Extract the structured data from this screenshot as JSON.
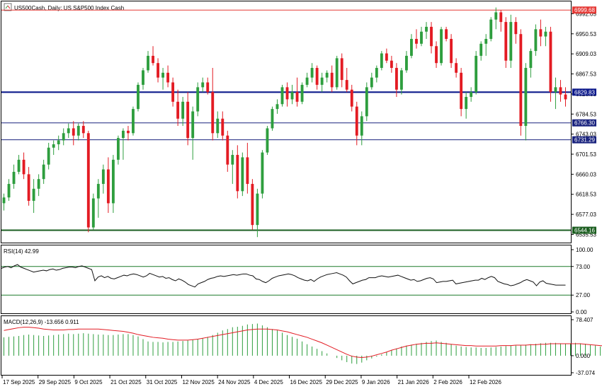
{
  "header": {
    "title": "US500Cash, Daily:  US S&P500 Index Cash"
  },
  "chart_data": [
    {
      "type": "candlestick",
      "symbol": "US500Cash",
      "timeframe": "Daily",
      "description": "US S&P500 Index Cash",
      "y_ticks": [
        "6992.05",
        "6950.53",
        "6909.03",
        "6867.53",
        "6826.03",
        "6784.53",
        "6743.03",
        "6701.53",
        "6660.03",
        "6618.53",
        "6577.03",
        "6535.53"
      ],
      "ylim": [
        6523,
        7000
      ],
      "x_ticks": [
        "17 Sep 2025",
        "29 Sep 2025",
        "9 Oct 2025",
        "21 Oct 2025",
        "31 Oct 2025",
        "12 Nov 2025",
        "24 Nov 2025",
        "4 Dec 2025",
        "16 Dec 2025",
        "29 Dec 2025",
        "9 Jan 2026",
        "21 Jan 2026",
        "2 Feb 2026",
        "12 Feb 2026"
      ],
      "levels": [
        {
          "value": 6999.68,
          "label": "6999.68",
          "color": "#e53935"
        },
        {
          "value": 6829.83,
          "label": "6829.83",
          "color": "#0d1a8c"
        },
        {
          "value": 6766.3,
          "label": "6766.30",
          "color": "#1a237e"
        },
        {
          "value": 6731.29,
          "label": "6731.29",
          "color": "#1a237e"
        },
        {
          "value": 6544.16,
          "label": "6544.16",
          "color": "#1b5e20"
        }
      ],
      "up_color": "#2e9e3e",
      "down_color": "#e31b23",
      "ohlc": [
        [
          6600,
          6620,
          6585,
          6612
        ],
        [
          6612,
          6650,
          6605,
          6640
        ],
        [
          6640,
          6680,
          6630,
          6665
        ],
        [
          6665,
          6700,
          6660,
          6690
        ],
        [
          6690,
          6705,
          6650,
          6660
        ],
        [
          6660,
          6675,
          6595,
          6605
        ],
        [
          6605,
          6650,
          6580,
          6630
        ],
        [
          6630,
          6660,
          6615,
          6650
        ],
        [
          6650,
          6690,
          6640,
          6680
        ],
        [
          6680,
          6725,
          6670,
          6715
        ],
        [
          6715,
          6730,
          6700,
          6722
        ],
        [
          6722,
          6740,
          6710,
          6730
        ],
        [
          6730,
          6755,
          6720,
          6745
        ],
        [
          6745,
          6765,
          6735,
          6755
        ],
        [
          6755,
          6770,
          6720,
          6740
        ],
        [
          6740,
          6765,
          6730,
          6760
        ],
        [
          6760,
          6770,
          6735,
          6745
        ],
        [
          6745,
          6750,
          6540,
          6550
        ],
        [
          6550,
          6620,
          6545,
          6610
        ],
        [
          6610,
          6650,
          6570,
          6640
        ],
        [
          6640,
          6680,
          6620,
          6670
        ],
        [
          6670,
          6695,
          6580,
          6600
        ],
        [
          6600,
          6700,
          6580,
          6690
        ],
        [
          6690,
          6740,
          6680,
          6735
        ],
        [
          6735,
          6755,
          6690,
          6750
        ],
        [
          6750,
          6760,
          6730,
          6745
        ],
        [
          6745,
          6800,
          6740,
          6795
        ],
        [
          6795,
          6850,
          6790,
          6845
        ],
        [
          6845,
          6880,
          6835,
          6875
        ],
        [
          6875,
          6915,
          6870,
          6905
        ],
        [
          6905,
          6925,
          6885,
          6890
        ],
        [
          6890,
          6900,
          6850,
          6860
        ],
        [
          6860,
          6880,
          6835,
          6870
        ],
        [
          6870,
          6885,
          6840,
          6850
        ],
        [
          6850,
          6860,
          6800,
          6810
        ],
        [
          6810,
          6835,
          6760,
          6775
        ],
        [
          6775,
          6820,
          6760,
          6810
        ],
        [
          6810,
          6830,
          6720,
          6735
        ],
        [
          6735,
          6800,
          6690,
          6790
        ],
        [
          6790,
          6850,
          6780,
          6840
        ],
        [
          6840,
          6860,
          6830,
          6850
        ],
        [
          6850,
          6860,
          6825,
          6830
        ],
        [
          6830,
          6880,
          6730,
          6745
        ],
        [
          6745,
          6790,
          6735,
          6775
        ],
        [
          6775,
          6790,
          6730,
          6740
        ],
        [
          6740,
          6750,
          6665,
          6680
        ],
        [
          6680,
          6710,
          6640,
          6700
        ],
        [
          6700,
          6720,
          6610,
          6625
        ],
        [
          6625,
          6705,
          6615,
          6695
        ],
        [
          6695,
          6725,
          6620,
          6640
        ],
        [
          6640,
          6650,
          6545,
          6555
        ],
        [
          6555,
          6630,
          6530,
          6620
        ],
        [
          6620,
          6710,
          6610,
          6705
        ],
        [
          6705,
          6760,
          6700,
          6755
        ],
        [
          6755,
          6800,
          6750,
          6795
        ],
        [
          6795,
          6815,
          6785,
          6805
        ],
        [
          6805,
          6845,
          6800,
          6840
        ],
        [
          6840,
          6850,
          6800,
          6815
        ],
        [
          6815,
          6845,
          6805,
          6830
        ],
        [
          6830,
          6860,
          6800,
          6810
        ],
        [
          6810,
          6850,
          6805,
          6845
        ],
        [
          6845,
          6870,
          6840,
          6860
        ],
        [
          6860,
          6890,
          6850,
          6880
        ],
        [
          6880,
          6885,
          6835,
          6845
        ],
        [
          6845,
          6870,
          6830,
          6860
        ],
        [
          6860,
          6875,
          6850,
          6870
        ],
        [
          6870,
          6885,
          6830,
          6840
        ],
        [
          6840,
          6905,
          6835,
          6900
        ],
        [
          6900,
          6910,
          6840,
          6855
        ],
        [
          6855,
          6880,
          6830,
          6835
        ],
        [
          6835,
          6845,
          6790,
          6800
        ],
        [
          6800,
          6810,
          6720,
          6740
        ],
        [
          6740,
          6790,
          6720,
          6780
        ],
        [
          6780,
          6850,
          6770,
          6840
        ],
        [
          6840,
          6870,
          6835,
          6860
        ],
        [
          6860,
          6885,
          6850,
          6880
        ],
        [
          6880,
          6915,
          6875,
          6910
        ],
        [
          6910,
          6920,
          6890,
          6895
        ],
        [
          6895,
          6905,
          6870,
          6880
        ],
        [
          6880,
          6890,
          6820,
          6835
        ],
        [
          6835,
          6880,
          6825,
          6875
        ],
        [
          6875,
          6915,
          6870,
          6905
        ],
        [
          6905,
          6950,
          6900,
          6940
        ],
        [
          6940,
          6960,
          6920,
          6930
        ],
        [
          6930,
          6965,
          6925,
          6955
        ],
        [
          6955,
          6975,
          6940,
          6965
        ],
        [
          6965,
          6975,
          6910,
          6925
        ],
        [
          6925,
          6935,
          6880,
          6890
        ],
        [
          6890,
          6965,
          6885,
          6960
        ],
        [
          6960,
          6965,
          6935,
          6940
        ],
        [
          6940,
          6950,
          6880,
          6890
        ],
        [
          6890,
          6900,
          6860,
          6870
        ],
        [
          6870,
          6880,
          6780,
          6795
        ],
        [
          6795,
          6830,
          6775,
          6820
        ],
        [
          6820,
          6840,
          6810,
          6830
        ],
        [
          6830,
          6915,
          6825,
          6905
        ],
        [
          6905,
          6935,
          6895,
          6930
        ],
        [
          6930,
          6950,
          6905,
          6940
        ],
        [
          6940,
          6985,
          6935,
          6980
        ],
        [
          6980,
          7005,
          6960,
          6995
        ],
        [
          6995,
          7000,
          6955,
          6975
        ],
        [
          6975,
          6985,
          6880,
          6895
        ],
        [
          6895,
          6990,
          6880,
          6975
        ],
        [
          6975,
          6985,
          6930,
          6950
        ],
        [
          6950,
          6960,
          6740,
          6760
        ],
        [
          6760,
          6890,
          6730,
          6880
        ],
        [
          6880,
          6920,
          6860,
          6915
        ],
        [
          6915,
          6970,
          6905,
          6960
        ],
        [
          6960,
          6980,
          6925,
          6945
        ],
        [
          6945,
          6965,
          6925,
          6955
        ],
        [
          6955,
          6965,
          6810,
          6830
        ],
        [
          6830,
          6860,
          6795,
          6840
        ],
        [
          6840,
          6855,
          6810,
          6825
        ],
        [
          6825,
          6840,
          6800,
          6815
        ]
      ]
    },
    {
      "type": "line",
      "name": "RSI(14)",
      "label": "RSI(14) 42.99",
      "levels": [
        73.0,
        27.0
      ],
      "y_ticks": [
        "100.00",
        "73.00",
        "27.00",
        "0.00"
      ],
      "ylim": [
        0,
        100
      ],
      "color": "#111111",
      "values": [
        70,
        72,
        73,
        71,
        74,
        76,
        72,
        70,
        68,
        66,
        64,
        65,
        66,
        67,
        66,
        68,
        69,
        67,
        68,
        70,
        71,
        72,
        72,
        71,
        73,
        74,
        72,
        70,
        68,
        50,
        56,
        58,
        55,
        57,
        54,
        53,
        55,
        57,
        59,
        58,
        60,
        61,
        60,
        58,
        56,
        58,
        62,
        60,
        58,
        56,
        57,
        54,
        55,
        52,
        50,
        53,
        51,
        48,
        44,
        42,
        40,
        45,
        47,
        49,
        52,
        54,
        55,
        57,
        58,
        57,
        58,
        59,
        60,
        59,
        60,
        61,
        61,
        59,
        58,
        53,
        52,
        49,
        47,
        50,
        54,
        56,
        58,
        59,
        60,
        61,
        60,
        58,
        55,
        53,
        51,
        50,
        52,
        49,
        53,
        56,
        58,
        60,
        61,
        62,
        63,
        61,
        59,
        56,
        50,
        45,
        47,
        49,
        51,
        52,
        55,
        55,
        55,
        57,
        58,
        57,
        56,
        57,
        58,
        59,
        57,
        55,
        53,
        51,
        52,
        49,
        50,
        52,
        54,
        55,
        53,
        47,
        48,
        49,
        49,
        50,
        51,
        45,
        46,
        47,
        48,
        49,
        50,
        51,
        51,
        54,
        52,
        55,
        57,
        55,
        49,
        47,
        45,
        44,
        42,
        43,
        45,
        47,
        50,
        52,
        50,
        48,
        42,
        48,
        50,
        46,
        45,
        44,
        43,
        43,
        43,
        42.99
      ]
    },
    {
      "type": "bar+line",
      "name": "MACD(12,26,9)",
      "label": "MACD(12,26,9) -13.656 0.911",
      "y_ticks": [
        "78.407",
        "0.000",
        "-37.074"
      ],
      "ylim": [
        -37.074,
        78.407
      ],
      "bar_color": "#2e9e3e",
      "signal_color": "#e31b23",
      "histogram": [
        40,
        41,
        42,
        43,
        45,
        46,
        45,
        44,
        43,
        44,
        45,
        46,
        47,
        48,
        47,
        48,
        49,
        48,
        47,
        46,
        46,
        45,
        45,
        46,
        47,
        47,
        45,
        42,
        36,
        31,
        30,
        30,
        29,
        30,
        30,
        31,
        32,
        33,
        35,
        36,
        38,
        41,
        45,
        50,
        55,
        58,
        62,
        63,
        65,
        68,
        69,
        70,
        66,
        62,
        58,
        55,
        50,
        45,
        41,
        37,
        31,
        25,
        20,
        15,
        10,
        5,
        0,
        -5,
        -10,
        -14,
        -17,
        -18,
        -15,
        -10,
        -6,
        -2,
        3,
        8,
        12,
        16,
        20,
        22,
        24,
        26,
        28,
        30,
        32,
        33,
        30,
        28,
        25,
        22,
        20,
        19,
        18,
        18,
        17,
        17,
        18,
        19,
        20,
        21,
        22,
        22,
        23,
        24,
        25,
        26,
        27,
        28,
        28,
        28,
        27,
        26,
        27,
        28,
        27,
        26,
        24,
        22,
        20,
        19,
        18,
        17,
        18,
        19,
        18,
        18,
        17,
        16,
        14,
        10,
        5,
        3,
        1,
        -2,
        -3,
        -5,
        -6
      ],
      "signal": [
        55,
        57,
        59,
        61,
        62,
        62,
        61,
        60,
        58,
        57,
        56,
        56,
        56,
        57,
        57,
        58,
        58,
        58,
        58,
        58,
        57,
        56,
        55,
        54,
        53,
        51,
        49,
        46,
        44,
        42,
        40,
        39,
        38,
        36,
        35,
        34,
        34,
        34,
        35,
        36,
        38,
        40,
        42,
        44,
        46,
        48,
        50,
        52,
        54,
        56,
        57,
        58,
        58,
        58,
        57,
        56,
        54,
        52,
        49,
        46,
        43,
        40,
        36,
        32,
        28,
        23,
        18,
        13,
        8,
        3,
        -1,
        -3,
        -4,
        -3,
        -1,
        2,
        5,
        8,
        12,
        15,
        18,
        21,
        23,
        25,
        26,
        27,
        27,
        28,
        27,
        26,
        25,
        24,
        23,
        22,
        22,
        21,
        21,
        21,
        21,
        21,
        22,
        22,
        22,
        23,
        23,
        23,
        24,
        24,
        25,
        25,
        26,
        26,
        26,
        26,
        26,
        26,
        26,
        25,
        24,
        23,
        22,
        21,
        20,
        19,
        19,
        18,
        18,
        18,
        17,
        17,
        16,
        14,
        12,
        10,
        8,
        6,
        4,
        2,
        0.9
      ]
    }
  ]
}
